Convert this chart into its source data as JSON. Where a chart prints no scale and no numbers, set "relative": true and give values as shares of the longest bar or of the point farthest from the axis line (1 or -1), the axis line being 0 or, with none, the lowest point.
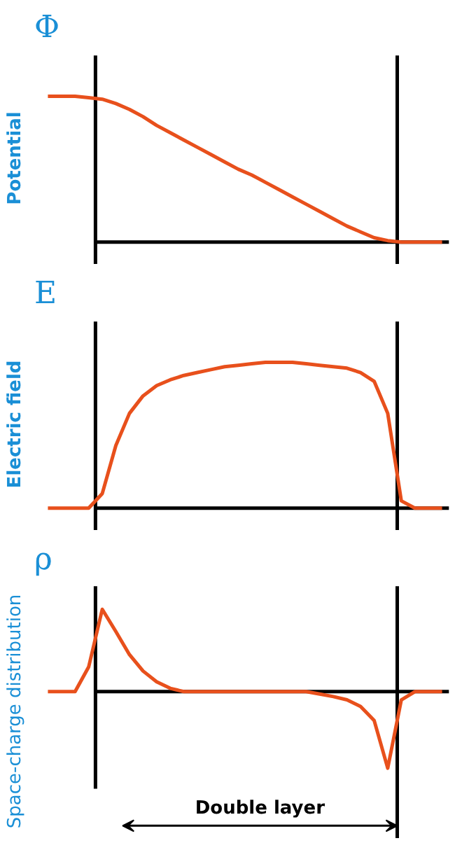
{
  "chart_data": [
    {
      "type": "line",
      "title": "Φ",
      "ylabel": "Potential",
      "relative": true,
      "color": "#e8501c",
      "grid": false,
      "categories": [
        null,
        null,
        null,
        null,
        null,
        null,
        null,
        null,
        null,
        null,
        null,
        null,
        null,
        null,
        null,
        null,
        null,
        null,
        null,
        null,
        null,
        null,
        null,
        null,
        null,
        null,
        null,
        null,
        null,
        null
      ],
      "values": [
        1,
        1,
        1,
        0.99,
        0.98,
        0.95,
        0.91,
        0.86,
        0.8,
        0.75,
        0.7,
        0.65,
        0.6,
        0.55,
        0.5,
        0.46,
        0.41,
        0.36,
        0.31,
        0.26,
        0.21,
        0.16,
        0.11,
        0.07,
        0.03,
        0.01,
        0,
        0,
        0,
        0
      ]
    },
    {
      "type": "line",
      "title": "E",
      "ylabel": "Electric field",
      "relative": true,
      "color": "#e8501c",
      "grid": false,
      "categories": [
        null,
        null,
        null,
        null,
        null,
        null,
        null,
        null,
        null,
        null,
        null,
        null,
        null,
        null,
        null,
        null,
        null,
        null,
        null,
        null,
        null,
        null,
        null,
        null,
        null,
        null,
        null,
        null,
        null,
        null
      ],
      "values": [
        0,
        0,
        0,
        0,
        0.1,
        0.43,
        0.65,
        0.77,
        0.84,
        0.88,
        0.91,
        0.93,
        0.95,
        0.97,
        0.98,
        0.99,
        1,
        1,
        1,
        0.99,
        0.98,
        0.97,
        0.96,
        0.93,
        0.87,
        0.65,
        0.05,
        0,
        0,
        0
      ]
    },
    {
      "type": "line",
      "title": "ρ",
      "ylabel": "Space-charge distribution",
      "relative": true,
      "color": "#e8501c",
      "grid": false,
      "categories": [
        null,
        null,
        null,
        null,
        null,
        null,
        null,
        null,
        null,
        null,
        null,
        null,
        null,
        null,
        null,
        null,
        null,
        null,
        null,
        null,
        null,
        null,
        null,
        null,
        null,
        null,
        null,
        null,
        null,
        null
      ],
      "values": [
        0,
        0,
        0,
        0.3,
        1,
        0.73,
        0.45,
        0.25,
        0.12,
        0.04,
        0,
        0,
        0,
        0,
        0,
        0,
        0,
        0,
        0,
        0,
        -0.03,
        -0.06,
        -0.1,
        -0.18,
        -0.35,
        -0.93,
        -0.1,
        0,
        0,
        0
      ],
      "annotations": [
        "Double layer"
      ]
    }
  ]
}
